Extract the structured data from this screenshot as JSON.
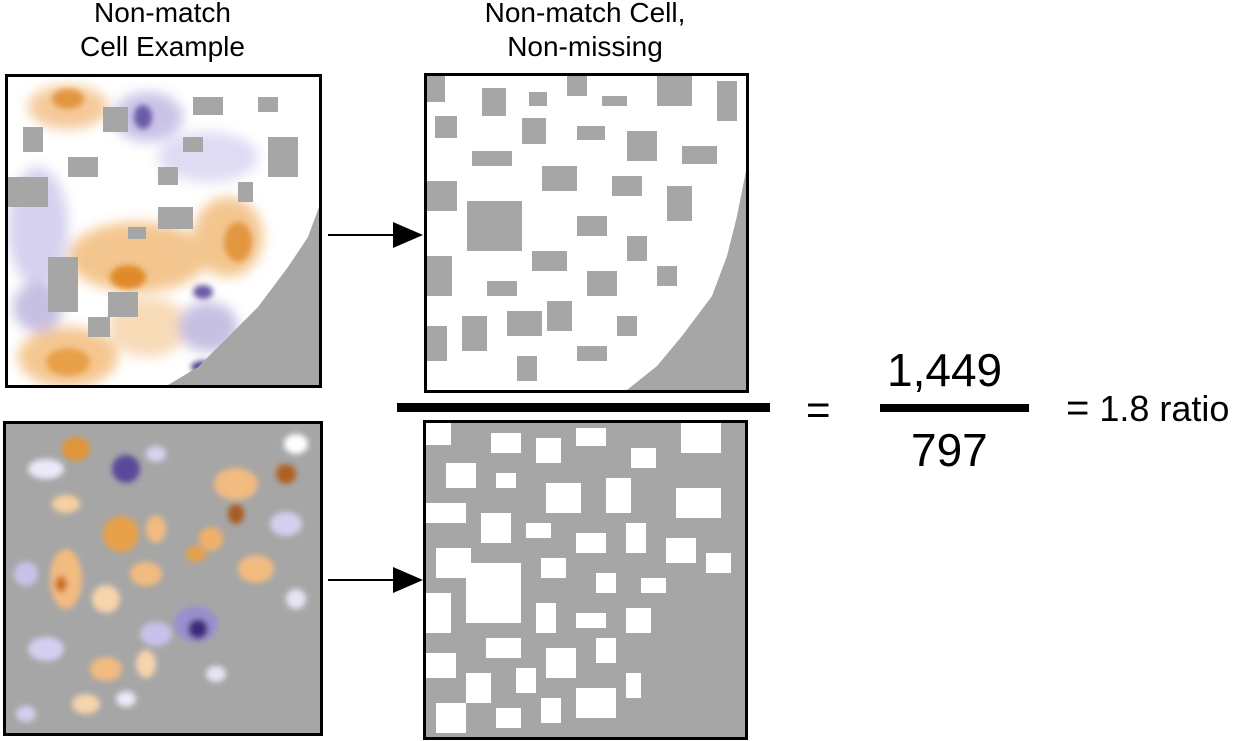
{
  "headings": {
    "left": [
      "Non-match",
      "Cell Example"
    ],
    "right": [
      "Non-match Cell,",
      "Non-missing"
    ]
  },
  "equation": {
    "equals": "=",
    "numerator": "1,449",
    "denominator": "797",
    "result_equals": "=",
    "result": "1.8 ratio"
  },
  "colors": {
    "missing": "#a6a6a6",
    "non_missing": "#ffffff",
    "high": "#e8a04a",
    "low": "#8a7fc0",
    "frame": "#000000"
  }
}
